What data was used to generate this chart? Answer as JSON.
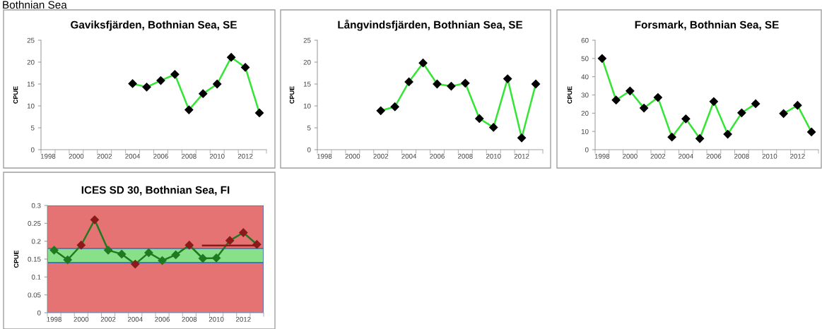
{
  "chart_data": [
    {
      "type": "line",
      "title": "Gaviksfjärden, Bothnian Sea, SE",
      "ylabel": "CPUE",
      "annotations": [
        "Bothnian Sea"
      ],
      "categories": [
        "1998",
        null,
        "2000",
        null,
        "2002",
        null,
        "2004",
        null,
        "2006",
        null,
        "2008",
        null,
        "2010",
        null,
        "2012",
        null
      ],
      "series": [
        {
          "color": "#33e633",
          "values": [
            null,
            null,
            null,
            null,
            null,
            null,
            15.1,
            14.3,
            15.8,
            17.2,
            9.1,
            12.8,
            15.0,
            21.1,
            18.8,
            8.4
          ]
        }
      ],
      "ylim": [
        0,
        25
      ],
      "yticks": [
        0,
        5,
        10,
        15,
        20,
        25
      ],
      "marker": "diamond",
      "grid": false
    },
    {
      "type": "line",
      "title": "Långvindsfjärden, Bothnian Sea, SE",
      "ylabel": "CPUE",
      "categories": [
        "1998",
        null,
        "2000",
        null,
        "2002",
        null,
        "2004",
        null,
        "2006",
        null,
        "2008",
        null,
        "2010",
        null,
        "2012",
        null
      ],
      "series": [
        {
          "color": "#33e633",
          "values": [
            null,
            null,
            null,
            null,
            8.9,
            9.8,
            15.5,
            19.8,
            15.0,
            14.5,
            15.2,
            7.1,
            5.1,
            16.2,
            2.7,
            15.0
          ]
        }
      ],
      "ylim": [
        0,
        25
      ],
      "yticks": [
        0,
        5,
        10,
        15,
        20,
        25
      ],
      "marker": "diamond",
      "grid": false
    },
    {
      "type": "line",
      "title": "Forsmark, Bothnian Sea, SE",
      "ylabel": "CPUE",
      "categories": [
        "1998",
        null,
        "2000",
        null,
        "2002",
        null,
        "2004",
        null,
        "2006",
        null,
        "2008",
        null,
        "2010",
        null,
        "2012",
        null
      ],
      "series": [
        {
          "color": "#33e633",
          "values": [
            50.0,
            27.2,
            32.2,
            22.8,
            28.6,
            6.9,
            16.9,
            6.1,
            26.4,
            8.5,
            20.2,
            25.2,
            null,
            19.8,
            24.3,
            9.7
          ]
        }
      ],
      "ylim": [
        0,
        60
      ],
      "yticks": [
        0,
        10,
        20,
        30,
        40,
        50,
        60
      ],
      "marker": "diamond",
      "grid": false
    },
    {
      "type": "line",
      "title": "ICES SD 30, Bothnian Sea, FI",
      "ylabel": "CPUE",
      "categories": [
        "1998",
        null,
        "2000",
        null,
        "2002",
        null,
        "2004",
        null,
        "2006",
        null,
        "2008",
        null,
        "2010",
        null,
        "2012",
        null
      ],
      "series": [
        {
          "color": "#1f7a1f",
          "colors": [
            "#1f7a1f",
            "#1f7a1f",
            "#8b1a1a",
            "#8b1a1a",
            "#1f7a1f",
            "#1f7a1f",
            "#8b1a1a",
            "#1f7a1f",
            "#1f7a1f",
            "#1f7a1f",
            "#8b1a1a",
            "#1f7a1f",
            "#1f7a1f",
            "#8b1a1a",
            "#8b1a1a",
            "#8b1a1a"
          ],
          "values": [
            0.175,
            0.148,
            0.189,
            0.26,
            0.175,
            0.164,
            0.136,
            0.168,
            0.146,
            0.162,
            0.189,
            0.152,
            0.153,
            0.202,
            0.224,
            0.191
          ]
        },
        {
          "color": "#8b1a1a",
          "marker": "none",
          "values": [
            null,
            null,
            null,
            null,
            null,
            null,
            null,
            null,
            null,
            null,
            null,
            0.188,
            0.188,
            0.188,
            0.188,
            0.188
          ]
        }
      ],
      "bands": [
        {
          "axis": "y",
          "from": 0.18,
          "to": 0.3,
          "color": "#e57373"
        },
        {
          "axis": "y",
          "from": 0.14,
          "to": 0.18,
          "color": "#88e088"
        },
        {
          "axis": "y",
          "from": 0,
          "to": 0.14,
          "color": "#e57373"
        }
      ],
      "ylim": [
        0,
        0.3
      ],
      "yticks": [
        0,
        0.05,
        0.1,
        0.15,
        0.2,
        0.25,
        0.3
      ],
      "marker": "diamond",
      "grid": false
    }
  ]
}
